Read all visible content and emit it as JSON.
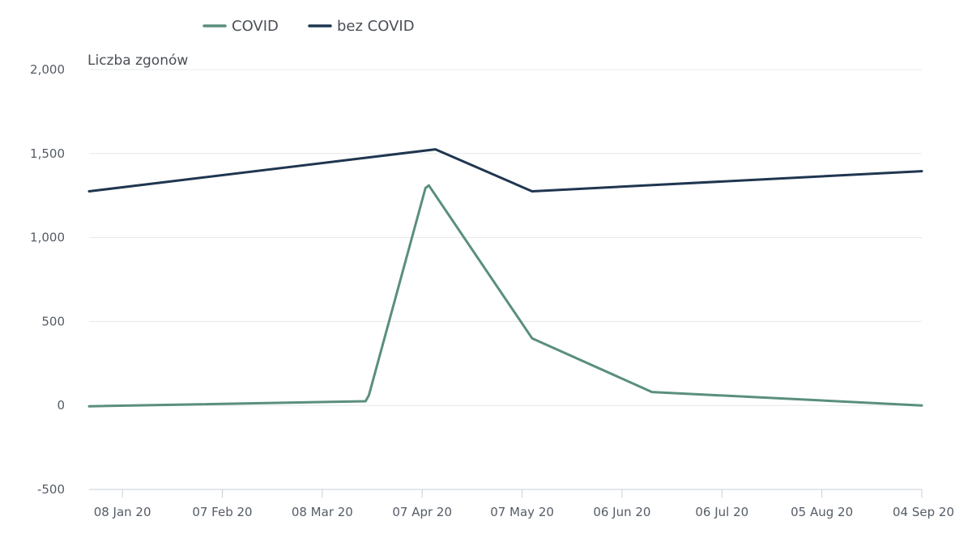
{
  "chart_data": {
    "type": "line",
    "ylabel": "Liczba zgonów",
    "xlabel": "",
    "ylim": [
      -500,
      2000
    ],
    "y_ticks": [
      "2,000",
      "1,500",
      "1,000",
      "500",
      "0",
      "-500"
    ],
    "y_tick_values": [
      2000,
      1500,
      1000,
      500,
      0,
      -500
    ],
    "x_ticks": [
      {
        "label": "08 Jan 20",
        "date": "2020-01-08"
      },
      {
        "label": "07 Feb 20",
        "date": "2020-02-07"
      },
      {
        "label": "08 Mar 20",
        "date": "2020-03-08"
      },
      {
        "label": "07 Apr 20",
        "date": "2020-04-07"
      },
      {
        "label": "07 May 20",
        "date": "2020-05-07"
      },
      {
        "label": "06 Jun 20",
        "date": "2020-06-06"
      },
      {
        "label": "06 Jul 20",
        "date": "2020-07-06"
      },
      {
        "label": "05 Aug 20",
        "date": "2020-08-05"
      },
      {
        "label": "04 Sep 20",
        "date": "2020-09-04"
      }
    ],
    "xlim": [
      "2019-12-29",
      "2020-09-04"
    ],
    "grid": true,
    "legend": "top-left",
    "series": [
      {
        "name": "COVID",
        "color": "#5a8f7b",
        "points": [
          {
            "x": "2019-12-29",
            "y": -5
          },
          {
            "x": "2020-03-21",
            "y": 25
          },
          {
            "x": "2020-03-22",
            "y": 60
          },
          {
            "x": "2020-04-08",
            "y": 1295
          },
          {
            "x": "2020-04-09",
            "y": 1310
          },
          {
            "x": "2020-05-10",
            "y": 400
          },
          {
            "x": "2020-06-15",
            "y": 80
          },
          {
            "x": "2020-09-04",
            "y": 0
          }
        ]
      },
      {
        "name": "bez COVID",
        "color": "#1f3650",
        "points": [
          {
            "x": "2019-12-29",
            "y": 1275
          },
          {
            "x": "2020-04-11",
            "y": 1525
          },
          {
            "x": "2020-05-10",
            "y": 1275
          },
          {
            "x": "2020-09-04",
            "y": 1395
          }
        ]
      }
    ]
  }
}
